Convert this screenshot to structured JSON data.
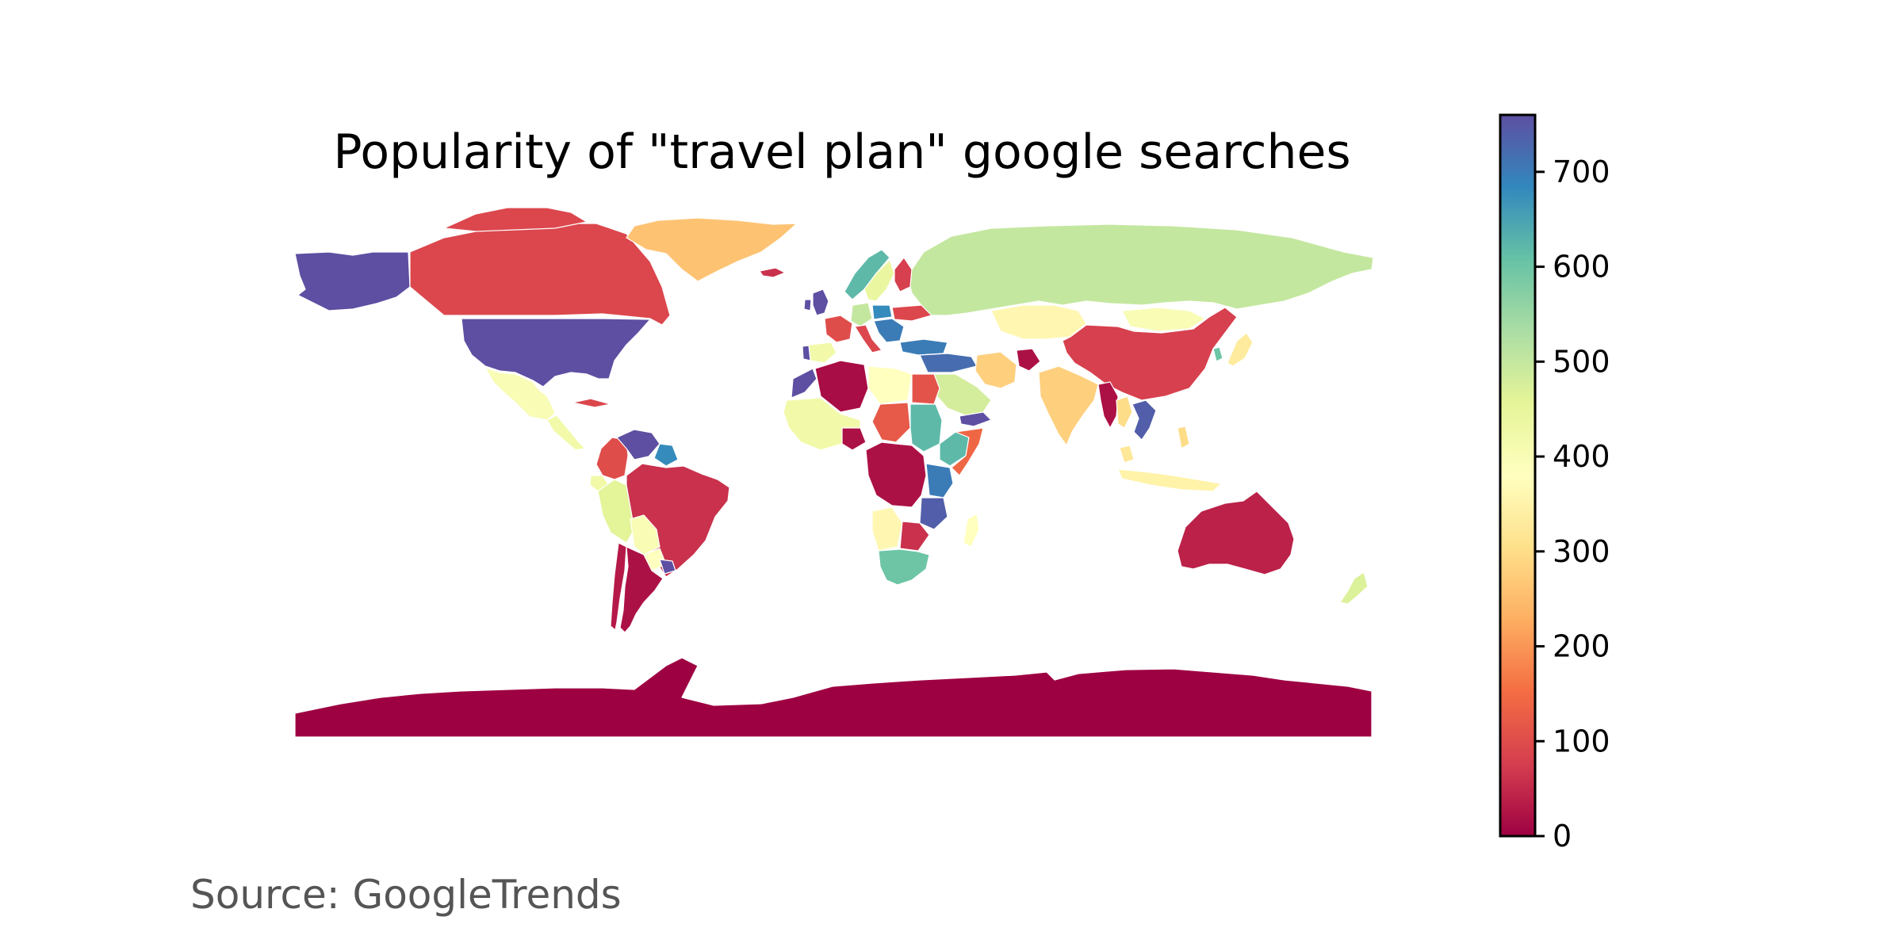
{
  "title": "Popularity of \"travel plan\" google searches",
  "source": "Source: GoogleTrends",
  "colorbar": {
    "min": 0,
    "max": 760,
    "ticks": [
      "0",
      "100",
      "200",
      "300",
      "400",
      "500",
      "600",
      "700"
    ],
    "colormap": "Spectral",
    "stops": [
      "#9e0142",
      "#d53e4f",
      "#f46d43",
      "#fdae61",
      "#fee08b",
      "#ffffbf",
      "#e6f598",
      "#abdda4",
      "#66c2a5",
      "#3288bd",
      "#5e4fa2"
    ]
  },
  "map_data": {
    "no_data_color": "#cccccc",
    "regions": [
      {
        "name": "Alaska",
        "value": 760
      },
      {
        "name": "United States",
        "value": 760
      },
      {
        "name": "Canada",
        "value": 90
      },
      {
        "name": "Greenland",
        "value": 260
      },
      {
        "name": "Mexico",
        "value": 400
      },
      {
        "name": "Central America",
        "value": 420
      },
      {
        "name": "Cuba",
        "value": 90
      },
      {
        "name": "Venezuela",
        "value": 760
      },
      {
        "name": "Guyana",
        "value": 680
      },
      {
        "name": "Colombia",
        "value": 100
      },
      {
        "name": "Ecuador",
        "value": 420
      },
      {
        "name": "Peru",
        "value": 460
      },
      {
        "name": "Brazil",
        "value": 60
      },
      {
        "name": "Bolivia",
        "value": 400
      },
      {
        "name": "Paraguay",
        "value": 380
      },
      {
        "name": "Chile",
        "value": 30
      },
      {
        "name": "Argentina",
        "value": 20
      },
      {
        "name": "Uruguay",
        "value": 760
      },
      {
        "name": "Iceland",
        "value": 60
      },
      {
        "name": "United Kingdom",
        "value": 760
      },
      {
        "name": "Ireland",
        "value": 760
      },
      {
        "name": "Norway",
        "value": 620
      },
      {
        "name": "Sweden",
        "value": 440
      },
      {
        "name": "Finland",
        "value": 80
      },
      {
        "name": "France",
        "value": 100
      },
      {
        "name": "Spain",
        "value": 420
      },
      {
        "name": "Portugal",
        "value": 760
      },
      {
        "name": "Germany",
        "value": 500
      },
      {
        "name": "Poland",
        "value": 680
      },
      {
        "name": "Italy",
        "value": 90
      },
      {
        "name": "Balkans",
        "value": 700
      },
      {
        "name": "Ukraine",
        "value": 90
      },
      {
        "name": "Turkey",
        "value": 700
      },
      {
        "name": "Russia",
        "value": 500
      },
      {
        "name": "Kazakhstan",
        "value": 360
      },
      {
        "name": "Mongolia",
        "value": 400
      },
      {
        "name": "China",
        "value": 80
      },
      {
        "name": "Korea",
        "value": 600
      },
      {
        "name": "Japan",
        "value": 330
      },
      {
        "name": "Middle East",
        "value": 720
      },
      {
        "name": "Iran",
        "value": 280
      },
      {
        "name": "Afghanistan",
        "value": 20
      },
      {
        "name": "Saudi Arabia",
        "value": 480
      },
      {
        "name": "Yemen",
        "value": 760
      },
      {
        "name": "India",
        "value": 280
      },
      {
        "name": "Myanmar",
        "value": 20
      },
      {
        "name": "Thailand",
        "value": 300
      },
      {
        "name": "Vietnam",
        "value": 740
      },
      {
        "name": "Malaysia",
        "value": 320
      },
      {
        "name": "Indonesia",
        "value": 350
      },
      {
        "name": "Philippines",
        "value": 300
      },
      {
        "name": "Australia",
        "value": 40
      },
      {
        "name": "New Zealand",
        "value": 470
      },
      {
        "name": "Morocco",
        "value": 760
      },
      {
        "name": "Algeria",
        "value": 15
      },
      {
        "name": "Libya",
        "value": 380
      },
      {
        "name": "Egypt",
        "value": 110
      },
      {
        "name": "West Africa",
        "value": 420
      },
      {
        "name": "Nigeria",
        "value": 20
      },
      {
        "name": "Chad",
        "value": 120
      },
      {
        "name": "Sudan",
        "value": 620
      },
      {
        "name": "Ethiopia",
        "value": 620
      },
      {
        "name": "Somalia",
        "value": 140
      },
      {
        "name": "Central Africa",
        "value": 20
      },
      {
        "name": "Kenya",
        "value": 700
      },
      {
        "name": "Tanzania",
        "value": 740
      },
      {
        "name": "Angola",
        "value": 360
      },
      {
        "name": "Zambia",
        "value": 60
      },
      {
        "name": "Southern Africa",
        "value": 600
      },
      {
        "name": "Madagascar",
        "value": 380
      },
      {
        "name": "Antarctica",
        "value": 0
      }
    ]
  }
}
